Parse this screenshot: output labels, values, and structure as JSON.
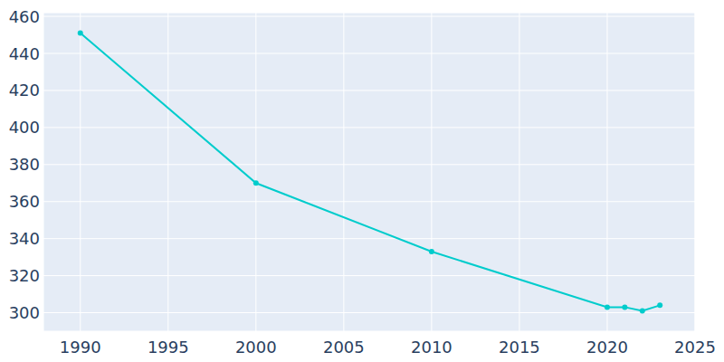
{
  "chart_data": {
    "type": "line",
    "x": [
      1990,
      2000,
      2010,
      2020,
      2021,
      2022,
      2023
    ],
    "values": [
      451,
      370,
      333,
      303,
      303,
      301,
      304
    ],
    "color": "#00cccc",
    "marker": "circle",
    "xlim": [
      1987.9,
      2025
    ],
    "xticks": [
      1990,
      1995,
      2000,
      2005,
      2010,
      2015,
      2020,
      2025
    ],
    "ylim": [
      290,
      462
    ],
    "yticks": [
      300,
      320,
      340,
      360,
      380,
      400,
      420,
      440,
      460
    ],
    "grid": true
  }
}
